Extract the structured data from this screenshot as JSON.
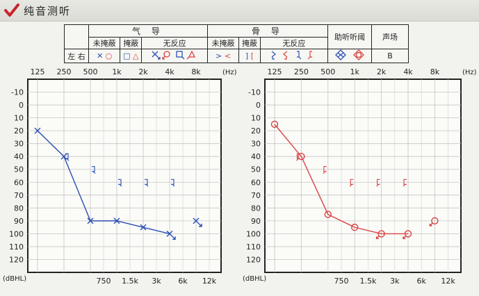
{
  "page": {
    "title": "纯音测听"
  },
  "legend": {
    "side_label": "左 右",
    "air_title": "气 导",
    "bone_title": "骨 导",
    "aided_title": "助听听阈",
    "field_title": "声场",
    "unmasked": "未掩蔽",
    "masked": "掩蔽",
    "no_response": "无反应",
    "air_unmasked_symbols": "✕ ○",
    "air_masked_symbols": "□ △",
    "bone_unmasked_symbols": "> <",
    "bone_masked_symbols": "] [",
    "field_symbol": "B"
  },
  "chart_data": [
    {
      "type": "line",
      "ear": "left",
      "color": "#2b4fb5",
      "x_ticks_top": [
        "125",
        "250",
        "500",
        "1k",
        "2k",
        "4k",
        "8k"
      ],
      "x_unit": "(Hz)",
      "x_ticks_bottom": [
        "750",
        "1.5k",
        "3k",
        "6k",
        "12k"
      ],
      "y_ticks": [
        -10,
        0,
        10,
        20,
        30,
        40,
        50,
        60,
        70,
        80,
        90,
        100,
        110,
        120
      ],
      "ylabel": "(dBHL)",
      "ylim": [
        -20,
        130
      ],
      "air_conduction": {
        "symbol": "x",
        "x": [
          125,
          250,
          500,
          1000,
          2000,
          4000
        ],
        "y": [
          20,
          40,
          90,
          90,
          95,
          100
        ],
        "no_response": [
          false,
          false,
          false,
          false,
          false,
          true
        ]
      },
      "bone_conduction": {
        "symbol": "bone-masked",
        "x": [
          250,
          500,
          1000,
          2000,
          4000
        ],
        "y": [
          40,
          50,
          60,
          60,
          60
        ]
      },
      "extra_points": [
        {
          "x": 8000,
          "y": 90,
          "symbol": "x",
          "no_response": true
        }
      ]
    },
    {
      "type": "line",
      "ear": "right",
      "color": "#d94242",
      "x_ticks_top": [
        "125",
        "250",
        "500",
        "1k",
        "2k",
        "4k",
        "8k"
      ],
      "x_unit": "(Hz)",
      "x_ticks_bottom": [
        "750",
        "1.5k",
        "3k",
        "6k",
        "12k"
      ],
      "y_ticks": [
        -10,
        0,
        10,
        20,
        30,
        40,
        50,
        60,
        70,
        80,
        90,
        100,
        110,
        120
      ],
      "ylabel": "(dBHL)",
      "ylim": [
        -20,
        130
      ],
      "air_conduction": {
        "symbol": "o",
        "x": [
          125,
          250,
          500,
          1000,
          2000,
          4000
        ],
        "y": [
          15,
          40,
          85,
          95,
          100,
          100
        ],
        "no_response": [
          false,
          false,
          false,
          false,
          true,
          true
        ]
      },
      "bone_conduction": {
        "symbol": "bone-masked",
        "x": [
          250,
          500,
          1000,
          2000,
          4000
        ],
        "y": [
          40,
          50,
          60,
          60,
          60
        ]
      },
      "extra_points": [
        {
          "x": 8000,
          "y": 90,
          "symbol": "o",
          "no_response": true
        }
      ]
    }
  ]
}
